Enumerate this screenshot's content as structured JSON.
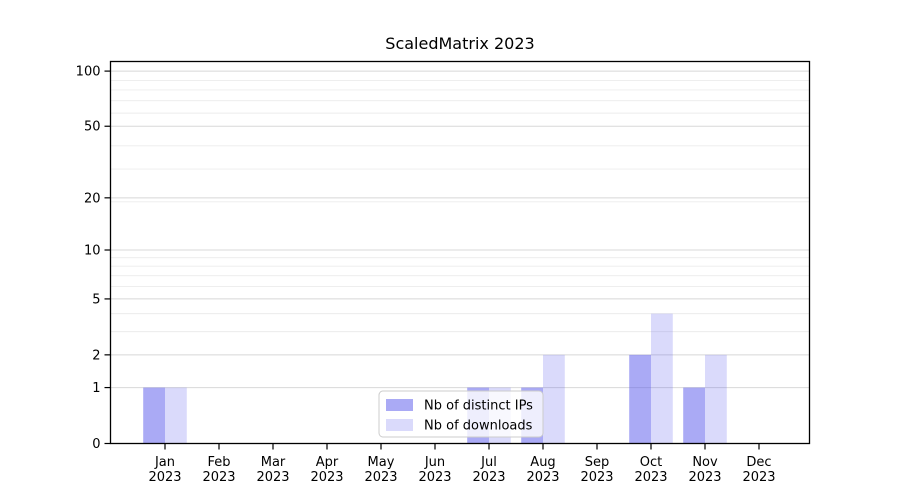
{
  "title": "ScaledMatrix 2023",
  "chart_data": {
    "type": "bar",
    "title": "ScaledMatrix 2023",
    "categories": [
      "Jan",
      "Feb",
      "Mar",
      "Apr",
      "May",
      "Jun",
      "Jul",
      "Aug",
      "Sep",
      "Oct",
      "Nov",
      "Dec"
    ],
    "year_label": "2023",
    "series": [
      {
        "name": "Nb of distinct IPs",
        "values": [
          1,
          0,
          0,
          0,
          0,
          0,
          1,
          1,
          0,
          2,
          1,
          0
        ],
        "color": "rgba(85,85,235,0.5)"
      },
      {
        "name": "Nb of downloads",
        "values": [
          1,
          0,
          0,
          0,
          0,
          0,
          1,
          2,
          0,
          4,
          2,
          0
        ],
        "color": "rgba(85,85,235,0.22)"
      }
    ],
    "yticks": [
      0,
      1,
      2,
      5,
      10,
      20,
      50,
      100
    ],
    "ylim": [
      0,
      115
    ],
    "scale": "log1p",
    "grid": true,
    "legend_position": "lower center",
    "colors": {
      "bar_base": "#5555eb",
      "major_grid": "#d8d8d8",
      "minor_grid": "#ececec",
      "spine": "#000000",
      "text": "#000000",
      "legend_border": "#cccccc",
      "legend_bg": "rgba(255,255,255,0.8)"
    }
  }
}
